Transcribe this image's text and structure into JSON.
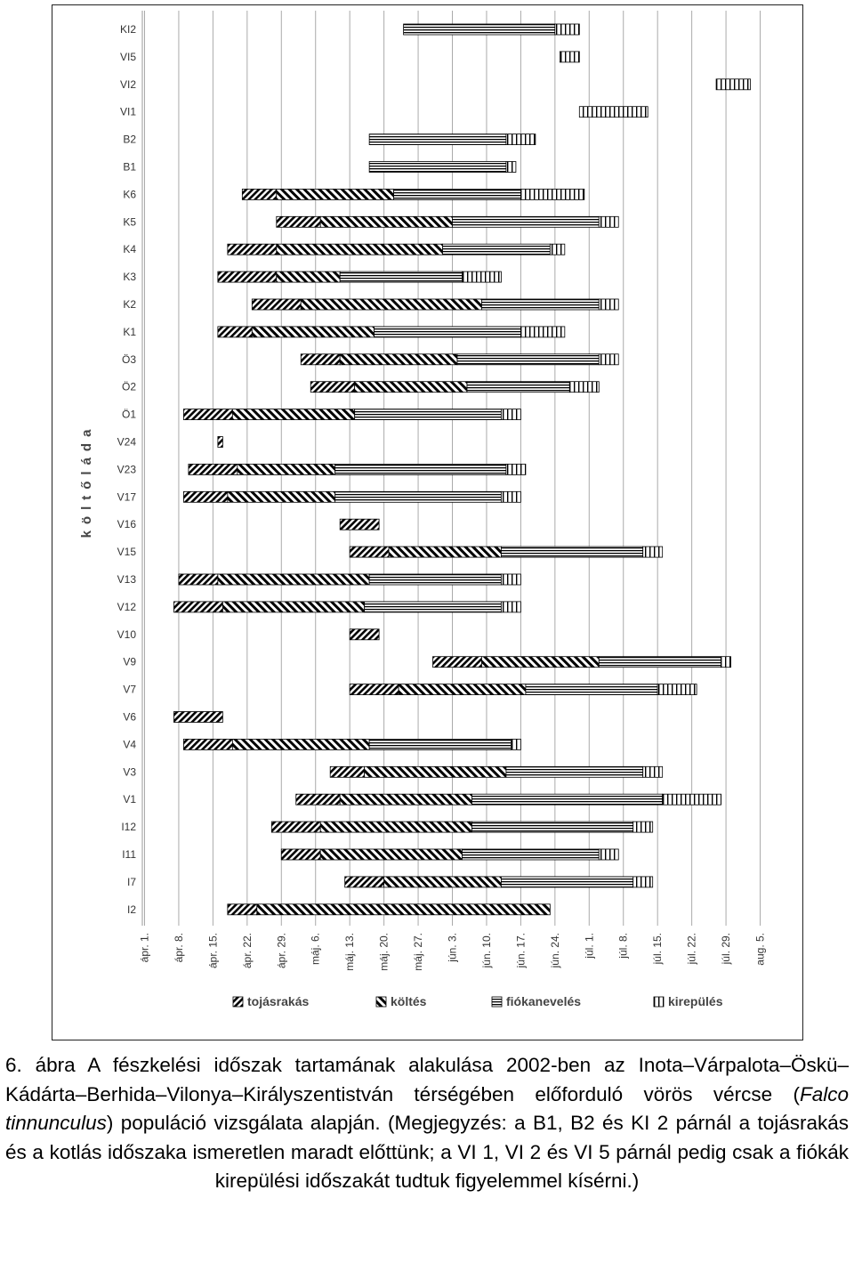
{
  "chart_data": {
    "type": "gantt",
    "y_label": "költőláda",
    "categories": [
      "KI2",
      "VI5",
      "VI2",
      "VI1",
      "B2",
      "B1",
      "K6",
      "K5",
      "K4",
      "K3",
      "K2",
      "K1",
      "Ö3",
      "Ö2",
      "Ö1",
      "V24",
      "V23",
      "V17",
      "V16",
      "V15",
      "V13",
      "V12",
      "V10",
      "V9",
      "V7",
      "V6",
      "V4",
      "V3",
      "V1",
      "I12",
      "I11",
      "I7",
      "I2"
    ],
    "xlim": [
      -1,
      129
    ],
    "xticks": [
      {
        "value": 0,
        "label": "ápr. 1."
      },
      {
        "value": 7,
        "label": "ápr. 8."
      },
      {
        "value": 14,
        "label": "ápr. 15."
      },
      {
        "value": 21,
        "label": "ápr. 22."
      },
      {
        "value": 28,
        "label": "ápr. 29."
      },
      {
        "value": 35,
        "label": "máj. 6."
      },
      {
        "value": 42,
        "label": "máj. 13."
      },
      {
        "value": 49,
        "label": "máj. 20."
      },
      {
        "value": 56,
        "label": "máj. 27."
      },
      {
        "value": 63,
        "label": "jún. 3."
      },
      {
        "value": 70,
        "label": "jún. 10."
      },
      {
        "value": 77,
        "label": "jún. 17."
      },
      {
        "value": 84,
        "label": "jún. 24."
      },
      {
        "value": 91,
        "label": "júl. 1."
      },
      {
        "value": 98,
        "label": "júl. 8."
      },
      {
        "value": 105,
        "label": "júl. 15."
      },
      {
        "value": 112,
        "label": "júl. 22."
      },
      {
        "value": 119,
        "label": "júl. 29."
      },
      {
        "value": 126,
        "label": "aug. 5."
      }
    ],
    "grid": true,
    "legend": "bottom",
    "series": [
      {
        "name": "tojásrakás",
        "color": "#000000",
        "pattern": "slash",
        "values": [
          null,
          null,
          null,
          null,
          null,
          null,
          [
            20,
            27
          ],
          [
            27,
            36
          ],
          [
            17,
            27
          ],
          [
            15,
            27
          ],
          [
            22,
            32
          ],
          [
            15,
            22
          ],
          [
            32,
            40
          ],
          [
            34,
            43
          ],
          [
            8,
            18
          ],
          [
            15,
            16
          ],
          [
            9,
            19
          ],
          [
            8,
            17
          ],
          [
            40,
            48
          ],
          [
            42,
            50
          ],
          [
            7,
            15
          ],
          [
            6,
            16
          ],
          [
            42,
            48
          ],
          [
            59,
            69
          ],
          [
            42,
            52
          ],
          [
            6,
            16
          ],
          [
            8,
            18
          ],
          [
            38,
            45
          ],
          [
            31,
            40
          ],
          [
            26,
            36
          ],
          [
            28,
            36
          ],
          [
            41,
            49
          ],
          [
            17,
            23
          ]
        ]
      },
      {
        "name": "költés",
        "color": "#000000",
        "pattern": "backslash",
        "values": [
          null,
          null,
          null,
          null,
          null,
          null,
          [
            27,
            51
          ],
          [
            36,
            63
          ],
          [
            27,
            61
          ],
          [
            27,
            40
          ],
          [
            32,
            69
          ],
          [
            22,
            47
          ],
          [
            40,
            64
          ],
          [
            43,
            66
          ],
          [
            18,
            43
          ],
          null,
          [
            19,
            39
          ],
          [
            17,
            39
          ],
          null,
          [
            50,
            73
          ],
          [
            15,
            46
          ],
          [
            16,
            45
          ],
          null,
          [
            69,
            93
          ],
          [
            52,
            78
          ],
          null,
          [
            18,
            46
          ],
          [
            45,
            74
          ],
          [
            40,
            67
          ],
          [
            36,
            67
          ],
          [
            36,
            65
          ],
          [
            49,
            73
          ],
          [
            23,
            83
          ]
        ]
      },
      {
        "name": "fiókanevelés",
        "color": "#000000",
        "pattern": "horizontal",
        "values": [
          [
            53,
            84
          ],
          null,
          null,
          null,
          [
            46,
            74
          ],
          [
            46,
            74
          ],
          [
            51,
            77
          ],
          [
            63,
            93
          ],
          [
            61,
            83
          ],
          [
            40,
            65
          ],
          [
            69,
            93
          ],
          [
            47,
            77
          ],
          [
            64,
            93
          ],
          [
            66,
            87
          ],
          [
            43,
            73
          ],
          null,
          [
            39,
            74
          ],
          [
            39,
            73
          ],
          null,
          [
            73,
            102
          ],
          [
            46,
            73
          ],
          [
            45,
            73
          ],
          null,
          [
            93,
            118
          ],
          [
            78,
            105
          ],
          null,
          [
            46,
            75
          ],
          [
            74,
            102
          ],
          [
            67,
            106
          ],
          [
            67,
            100
          ],
          [
            65,
            93
          ],
          [
            73,
            100
          ],
          null
        ]
      },
      {
        "name": "kirepülés",
        "color": "#000000",
        "pattern": "vertical",
        "values": [
          [
            84,
            89
          ],
          [
            85,
            89
          ],
          [
            117,
            124
          ],
          [
            89,
            103
          ],
          [
            74,
            80
          ],
          [
            74,
            76
          ],
          [
            77,
            90
          ],
          [
            93,
            97
          ],
          [
            83,
            86
          ],
          [
            65,
            73
          ],
          [
            93,
            97
          ],
          [
            77,
            86
          ],
          [
            93,
            97
          ],
          [
            87,
            93
          ],
          [
            73,
            77
          ],
          null,
          [
            74,
            78
          ],
          [
            73,
            77
          ],
          null,
          [
            102,
            106
          ],
          [
            73,
            77
          ],
          [
            73,
            77
          ],
          null,
          [
            118,
            120
          ],
          [
            105,
            113
          ],
          null,
          [
            75,
            77
          ],
          [
            102,
            106
          ],
          [
            106,
            118
          ],
          [
            100,
            104
          ],
          [
            93,
            97
          ],
          [
            100,
            104
          ],
          null
        ]
      }
    ]
  },
  "caption": {
    "parts": [
      "6. ábra A fészkelési időszak tartamának alakulása 2002-ben az Inota–Várpalota–Öskü–Kádárta–Berhida–Vilonya–Királyszentistván térségében előforduló vörös vércse (",
      "Falco tinnunculus",
      ") populáció vizsgálata alapján. (Megjegyzés: a B1, B2 és KI 2 párnál a tojásrakás és a kotlás időszaka ismeretlen maradt előttünk; a VI 1, VI 2 és VI 5 párnál pedig csak a fiókák kirepülési időszakát tudtuk figyelemmel kísérni.)"
    ]
  }
}
